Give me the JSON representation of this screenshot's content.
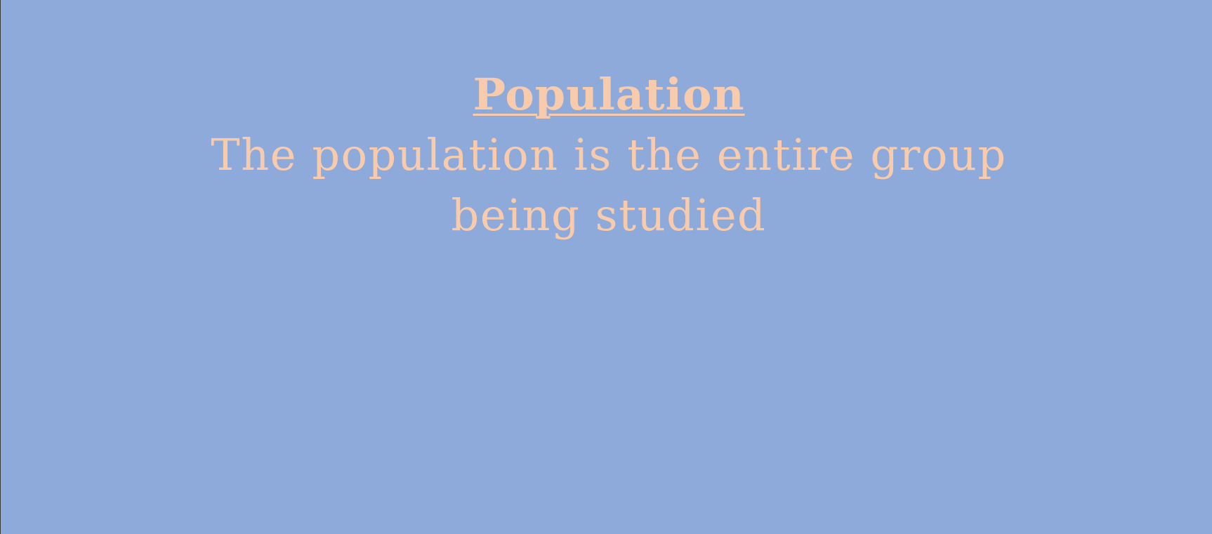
{
  "slide": {
    "title": "Population",
    "body_line_1": "The population is the entire group",
    "body_line_2": "being studied",
    "colors": {
      "background": "#8eaadb",
      "text": "#f8cbad"
    }
  }
}
